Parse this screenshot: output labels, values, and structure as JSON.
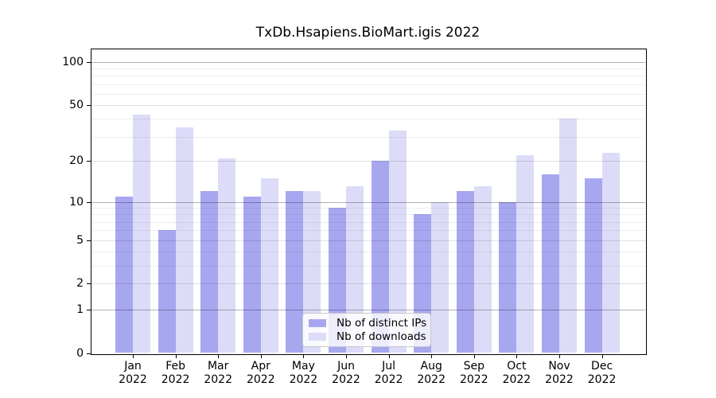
{
  "chart_data": {
    "type": "bar",
    "title": "TxDb.Hsapiens.BioMart.igis 2022",
    "categories": [
      "Jan",
      "Feb",
      "Mar",
      "Apr",
      "May",
      "Jun",
      "Jul",
      "Aug",
      "Sep",
      "Oct",
      "Nov",
      "Dec"
    ],
    "category_year": "2022",
    "series": [
      {
        "name": "Nb of distinct IPs",
        "color": "#a7a7f0",
        "values": [
          11,
          6,
          12,
          11,
          12,
          9,
          20,
          8,
          12,
          10,
          16,
          15
        ]
      },
      {
        "name": "Nb of downloads",
        "color": "#dcdcf8",
        "values": [
          43,
          35,
          21,
          15,
          12,
          13,
          33,
          10,
          13,
          22,
          40,
          23
        ]
      }
    ],
    "y_scale": "log1p",
    "ylim": [
      0,
      100
    ],
    "y_ticks": [
      0,
      1,
      2,
      5,
      10,
      20,
      50,
      100
    ],
    "y_major_grid": [
      1,
      10,
      100
    ],
    "y_mid_grid": [
      2,
      5,
      20,
      50
    ],
    "y_minor_grid": [
      3,
      4,
      6,
      7,
      8,
      9,
      30,
      40,
      60,
      70,
      80,
      90
    ],
    "grid": true,
    "legend_position": "lower center",
    "xlabel": "",
    "ylabel": ""
  }
}
